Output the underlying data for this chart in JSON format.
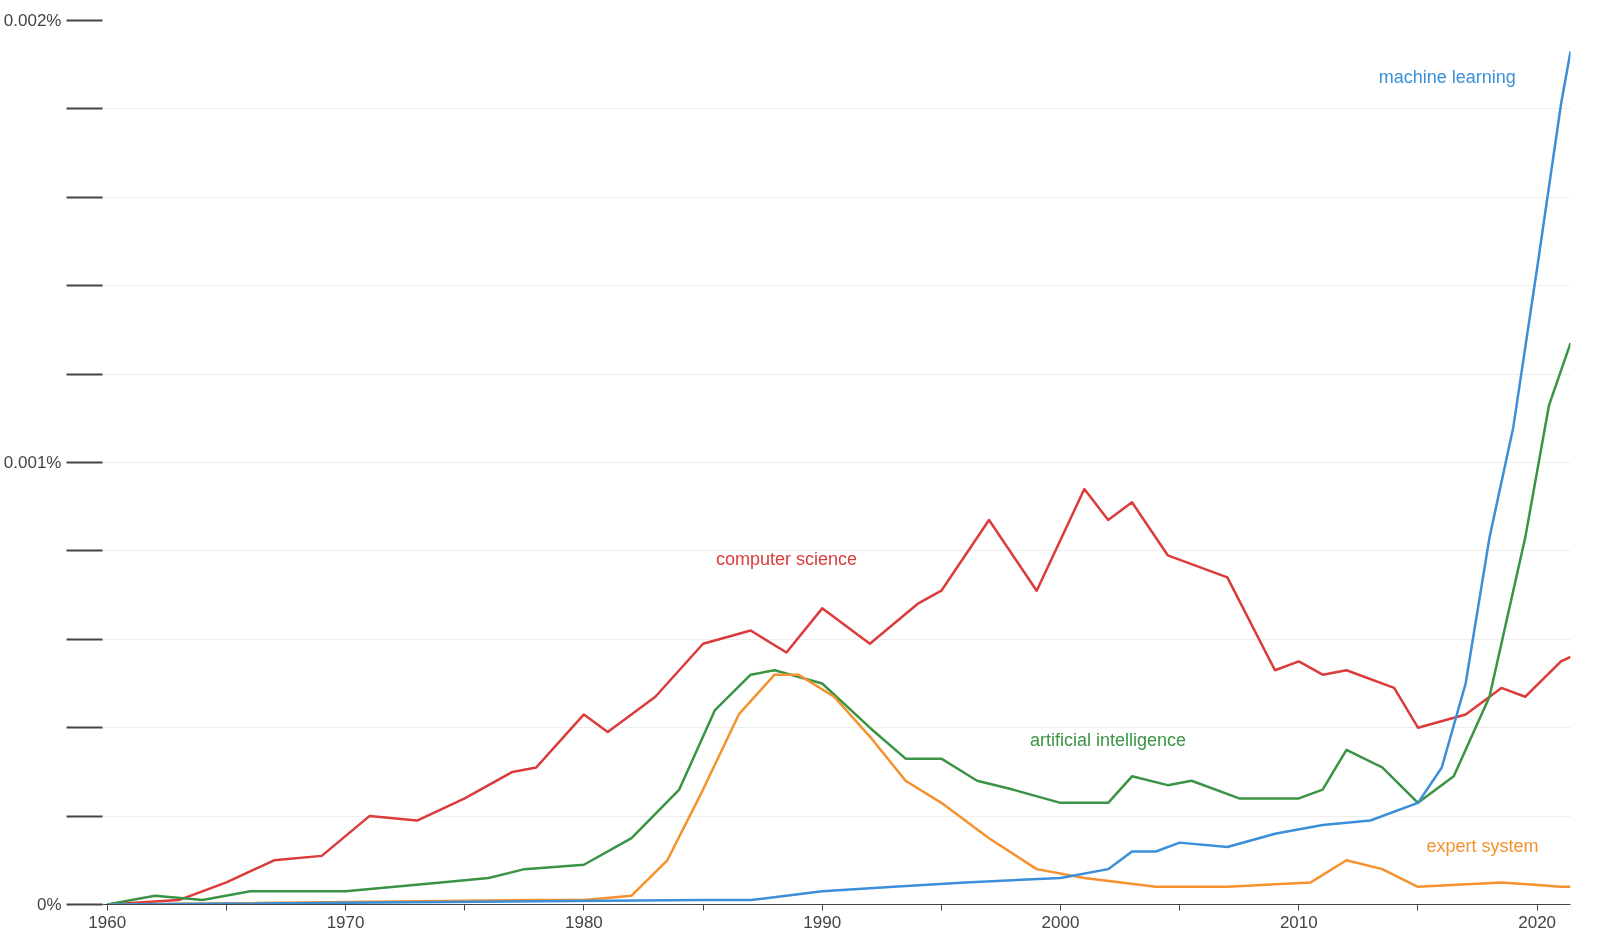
{
  "chart_data": {
    "type": "line",
    "xlim": [
      1959.8,
      2021.4
    ],
    "ylim": [
      0,
      0.002
    ],
    "xticks": [
      1960,
      {
        "value": 1965,
        "label": null
      },
      1970,
      {
        "value": 1975,
        "label": null
      },
      1980,
      {
        "value": 1985,
        "label": null
      },
      1990,
      {
        "value": 1995,
        "label": null
      },
      2000,
      {
        "value": 2005,
        "label": null
      },
      2010,
      {
        "value": 2015,
        "label": null
      },
      2020
    ],
    "yticks": [
      {
        "value": 0,
        "label": "0%"
      },
      {
        "value": 0.0002,
        "label": null
      },
      {
        "value": 0.0004,
        "label": null
      },
      {
        "value": 0.0006,
        "label": null
      },
      {
        "value": 0.0008,
        "label": null
      },
      {
        "value": 0.001,
        "label": "0.001%"
      },
      {
        "value": 0.0012,
        "label": null
      },
      {
        "value": 0.0014,
        "label": null
      },
      {
        "value": 0.0016,
        "label": null
      },
      {
        "value": 0.0018,
        "label": null
      },
      {
        "value": 0.002,
        "label": "0.002%"
      }
    ],
    "grid": "y",
    "legend": false,
    "marker": "none",
    "line_style": "solid",
    "series": [
      {
        "name": "computer science",
        "color": "#db3b3b",
        "x": [
          1960,
          1963,
          1965,
          1967,
          1969,
          1971,
          1973,
          1975,
          1977,
          1978,
          1980,
          1981,
          1983,
          1985,
          1987,
          1988.5,
          1990,
          1992,
          1994,
          1995,
          1997,
          1999,
          2001,
          2002,
          2003,
          2004.5,
          2007,
          2009,
          2010,
          2011,
          2012,
          2014,
          2015,
          2017,
          2018.5,
          2019.5,
          2021,
          2021.4
        ],
        "values": [
          0,
          1e-05,
          5e-05,
          0.0001,
          0.00011,
          0.0002,
          0.00019,
          0.00024,
          0.0003,
          0.00031,
          0.00043,
          0.00039,
          0.00047,
          0.00059,
          0.00062,
          0.00057,
          0.00067,
          0.00059,
          0.00068,
          0.00071,
          0.00087,
          0.00071,
          0.00094,
          0.00087,
          0.00091,
          0.00079,
          0.00074,
          0.00053,
          0.00055,
          0.00052,
          0.00053,
          0.00049,
          0.0004,
          0.00043,
          0.00049,
          0.00047,
          0.00055,
          0.00056
        ]
      },
      {
        "name": "artificial intelligence",
        "color": "#3a9444",
        "x": [
          1960,
          1962,
          1964,
          1966,
          1970,
          1974,
          1976,
          1977.5,
          1980,
          1982,
          1984,
          1985.5,
          1987,
          1988,
          1990,
          1992,
          1993.5,
          1995,
          1996.5,
          1998,
          2000,
          2002,
          2003,
          2004.5,
          2005.5,
          2007.5,
          2010,
          2011,
          2012,
          2013.5,
          2015,
          2016.5,
          2018,
          2019.5,
          2020.5,
          2021.4
        ],
        "values": [
          0,
          2e-05,
          1e-05,
          3e-05,
          3e-05,
          5e-05,
          6e-05,
          8e-05,
          9e-05,
          0.00015,
          0.00026,
          0.00044,
          0.00052,
          0.00053,
          0.0005,
          0.0004,
          0.00033,
          0.00033,
          0.00028,
          0.00026,
          0.00023,
          0.00023,
          0.00029,
          0.00027,
          0.00028,
          0.00024,
          0.00024,
          0.00026,
          0.00035,
          0.00031,
          0.00023,
          0.00029,
          0.00047,
          0.00083,
          0.00113,
          0.00127
        ]
      },
      {
        "name": "expert system",
        "color": "#f5922f",
        "x": [
          1960,
          1978,
          1980,
          1982,
          1983.5,
          1985,
          1986.5,
          1988,
          1989,
          1990.5,
          1992,
          1993.5,
          1995,
          1997,
          1999,
          2001,
          2004,
          2007,
          2010.5,
          2012,
          2013.5,
          2015,
          2018.5,
          2021,
          2021.4
        ],
        "values": [
          0,
          1e-05,
          1e-05,
          2e-05,
          0.0001,
          0.00026,
          0.00043,
          0.00052,
          0.00052,
          0.00047,
          0.00038,
          0.00028,
          0.00023,
          0.00015,
          8e-05,
          6e-05,
          4e-05,
          4e-05,
          5e-05,
          0.0001,
          8e-05,
          4e-05,
          5e-05,
          4e-05,
          4e-05
        ]
      },
      {
        "name": "machine learning",
        "color": "#3b8fd9",
        "x": [
          1960,
          1985,
          1987,
          1990,
          1993,
          1996,
          2000,
          2002,
          2003,
          2004,
          2005,
          2007,
          2009,
          2011,
          2013,
          2015,
          2016,
          2017,
          2018,
          2019,
          2020,
          2021,
          2021.4
        ],
        "values": [
          0,
          1e-05,
          1e-05,
          3e-05,
          4e-05,
          5e-05,
          6e-05,
          8e-05,
          0.00012,
          0.00012,
          0.00014,
          0.00013,
          0.00016,
          0.00018,
          0.00019,
          0.00023,
          0.00031,
          0.0005,
          0.00083,
          0.00108,
          0.00144,
          0.00181,
          0.00193
        ]
      }
    ]
  }
}
